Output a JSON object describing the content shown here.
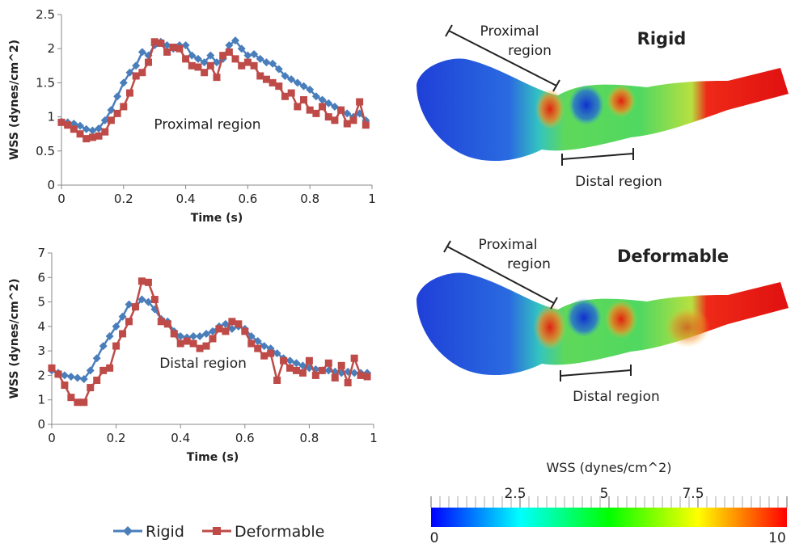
{
  "chart_data": [
    {
      "type": "line",
      "annotation": "Proximal region",
      "xlabel": "Time (s)",
      "ylabel": "WSS (dynes/cm^2)",
      "x": [
        0,
        0.02,
        0.04,
        0.06,
        0.08,
        0.1,
        0.12,
        0.14,
        0.16,
        0.18,
        0.2,
        0.22,
        0.24,
        0.26,
        0.28,
        0.3,
        0.32,
        0.34,
        0.36,
        0.38,
        0.4,
        0.42,
        0.44,
        0.46,
        0.48,
        0.5,
        0.52,
        0.54,
        0.56,
        0.58,
        0.6,
        0.62,
        0.64,
        0.66,
        0.68,
        0.7,
        0.72,
        0.74,
        0.76,
        0.78,
        0.8,
        0.82,
        0.84,
        0.86,
        0.88,
        0.9,
        0.92,
        0.94,
        0.96,
        0.98
      ],
      "series": [
        {
          "name": "Rigid",
          "color": "#4a7ebb",
          "marker": "diamond",
          "values": [
            0.93,
            0.92,
            0.9,
            0.87,
            0.82,
            0.8,
            0.83,
            0.95,
            1.1,
            1.3,
            1.5,
            1.65,
            1.75,
            1.95,
            1.9,
            2.05,
            2.1,
            2.05,
            2.0,
            2.05,
            2.05,
            1.9,
            1.85,
            1.8,
            1.9,
            1.8,
            1.85,
            2.05,
            2.12,
            2.0,
            1.9,
            1.92,
            1.85,
            1.8,
            1.78,
            1.7,
            1.6,
            1.55,
            1.5,
            1.45,
            1.4,
            1.3,
            1.25,
            1.2,
            1.15,
            1.1,
            1.05,
            1.0,
            1.05,
            0.95
          ]
        },
        {
          "name": "Deformable",
          "color": "#be4b48",
          "marker": "square",
          "values": [
            0.92,
            0.88,
            0.82,
            0.75,
            0.68,
            0.7,
            0.72,
            0.78,
            0.95,
            1.05,
            1.15,
            1.35,
            1.6,
            1.65,
            1.8,
            2.1,
            2.08,
            1.95,
            2.02,
            2.0,
            1.85,
            1.75,
            1.73,
            1.65,
            1.75,
            1.58,
            1.9,
            1.95,
            1.85,
            1.75,
            1.8,
            1.75,
            1.6,
            1.55,
            1.5,
            1.45,
            1.3,
            1.35,
            1.15,
            1.25,
            1.1,
            1.05,
            1.15,
            1.0,
            0.95,
            1.1,
            0.9,
            0.95,
            1.22,
            0.88
          ]
        }
      ],
      "xlim": [
        0,
        1
      ],
      "xticks": [
        0,
        0.2,
        0.4,
        0.6,
        0.8,
        1
      ],
      "ylim": [
        0,
        2.5
      ],
      "yticks": [
        0,
        0.5,
        1,
        1.5,
        2,
        2.5
      ]
    },
    {
      "type": "line",
      "annotation": "Distal region",
      "xlabel": "Time (s)",
      "ylabel": "WSS (dynes/cm^2)",
      "x": [
        0,
        0.02,
        0.04,
        0.06,
        0.08,
        0.1,
        0.12,
        0.14,
        0.16,
        0.18,
        0.2,
        0.22,
        0.24,
        0.26,
        0.28,
        0.3,
        0.32,
        0.34,
        0.36,
        0.38,
        0.4,
        0.42,
        0.44,
        0.46,
        0.48,
        0.5,
        0.52,
        0.54,
        0.56,
        0.58,
        0.6,
        0.62,
        0.64,
        0.66,
        0.68,
        0.7,
        0.72,
        0.74,
        0.76,
        0.78,
        0.8,
        0.82,
        0.84,
        0.86,
        0.88,
        0.9,
        0.92,
        0.94,
        0.96,
        0.98
      ],
      "series": [
        {
          "name": "Rigid",
          "color": "#4a7ebb",
          "marker": "diamond",
          "values": [
            2.2,
            2.1,
            2.0,
            1.95,
            1.9,
            1.85,
            2.2,
            2.7,
            3.2,
            3.6,
            4.0,
            4.4,
            4.9,
            4.8,
            5.1,
            5.0,
            4.7,
            4.3,
            4.2,
            3.8,
            3.6,
            3.55,
            3.6,
            3.6,
            3.7,
            3.8,
            4.0,
            4.1,
            3.9,
            4.0,
            3.9,
            3.6,
            3.4,
            3.2,
            3.1,
            2.9,
            2.7,
            2.6,
            2.5,
            2.4,
            2.3,
            2.25,
            2.2,
            2.2,
            2.15,
            2.1,
            2.15,
            2.1,
            2.1,
            2.1
          ]
        },
        {
          "name": "Deformable",
          "color": "#be4b48",
          "marker": "square",
          "values": [
            2.3,
            2.05,
            1.6,
            1.1,
            0.9,
            0.9,
            1.5,
            1.8,
            2.2,
            2.3,
            3.2,
            3.7,
            4.2,
            4.8,
            5.85,
            5.8,
            5.1,
            4.2,
            4.1,
            3.7,
            3.3,
            3.4,
            3.3,
            3.1,
            3.2,
            3.5,
            3.9,
            3.8,
            4.2,
            4.1,
            3.8,
            3.3,
            3.1,
            2.8,
            2.9,
            1.8,
            2.6,
            2.3,
            2.2,
            2.1,
            2.6,
            2.0,
            2.2,
            2.5,
            1.9,
            2.4,
            1.7,
            2.7,
            2.0,
            1.95
          ]
        }
      ],
      "xlim": [
        0,
        1
      ],
      "xticks": [
        0,
        0.2,
        0.4,
        0.6,
        0.8,
        1
      ],
      "ylim": [
        0,
        7
      ],
      "yticks": [
        0,
        1,
        2,
        3,
        4,
        5,
        6,
        7
      ]
    }
  ],
  "panels": [
    {
      "title": "Rigid",
      "proximal_label": [
        "Proximal",
        "region"
      ],
      "distal_label": "Distal region"
    },
    {
      "title": "Deformable",
      "proximal_label": [
        "Proximal",
        "region"
      ],
      "distal_label": "Distal region"
    }
  ],
  "colorbar": {
    "title": "WSS (dynes/cm^2)",
    "range": [
      0,
      10
    ],
    "ticks": [
      0,
      2.5,
      5,
      7.5,
      10
    ],
    "colors": [
      "#0000ff",
      "#00ffff",
      "#00ff00",
      "#ffff00",
      "#ff0000"
    ]
  }
}
